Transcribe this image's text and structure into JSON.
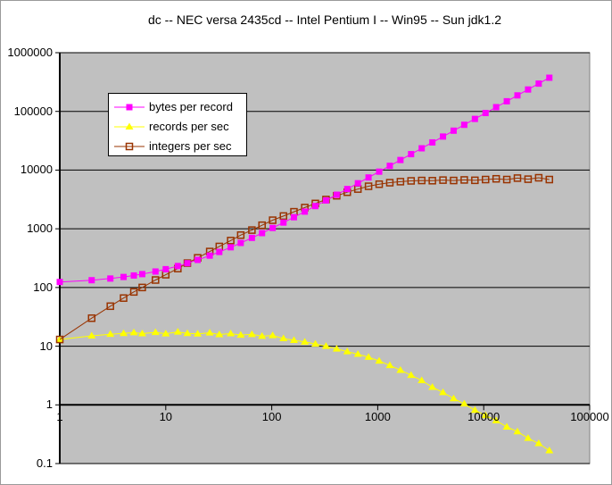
{
  "window": {
    "background": "#ffffff",
    "border_color": "#9a9a9a"
  },
  "chart_data": {
    "type": "line",
    "title": "dc -- NEC versa 2435cd -- Intel Pentium I -- Win95 -- Sun jdk1.2",
    "x_scale": "log",
    "y_scale": "log",
    "x_range": [
      1,
      100000
    ],
    "y_range": [
      0.1,
      1000000
    ],
    "x_tick_labels": [
      "1",
      "10",
      "100",
      "1000",
      "10000",
      "100000"
    ],
    "y_tick_labels": [
      "1000000",
      "100000",
      "10000",
      "1000",
      "100",
      "10",
      "1",
      "0.1"
    ],
    "grid": "horizontal-major",
    "plot_bg_color": "#c0c0c0",
    "gridline_color": "#000000",
    "axis_color": "#000000",
    "legend_position": "upper-left",
    "x": [
      1,
      2,
      3,
      4,
      5,
      6,
      8,
      10,
      13,
      16,
      20,
      26,
      32,
      41,
      51,
      65,
      81,
      102,
      129,
      162,
      205,
      258,
      325,
      410,
      516,
      650,
      819,
      1032,
      1300,
      1638,
      2064,
      2600,
      3277,
      4129,
      5202,
      6554,
      8258,
      10406,
      13107,
      16517,
      20810,
      26214,
      33032,
      41620
    ],
    "series": [
      {
        "name": "bytes per record",
        "color": "#ff00ff",
        "marker": "square",
        "values": [
          124,
          133,
          142,
          151,
          160,
          169,
          187,
          205,
          232,
          259,
          295,
          349,
          403,
          484,
          574,
          700,
          844,
          1033,
          1276,
          1573,
          1960,
          2437,
          3040,
          3805,
          4759,
          5965,
          7486,
          9403,
          11815,
          14857,
          18691,
          23515,
          29608,
          37276,
          46933,
          59101,
          74437,
          93769,
          118078,
          148768,
          187405,
          236041,
          297403,
          374695
        ]
      },
      {
        "name": "records per sec",
        "color": "#ffff00",
        "marker": "triangle",
        "values": [
          13,
          15,
          16,
          16.5,
          17,
          16.4,
          17.2,
          16.3,
          17.5,
          16.5,
          16.2,
          16.9,
          15.8,
          16.4,
          15.5,
          15.9,
          14.8,
          15.2,
          13.5,
          12.6,
          11.8,
          10.9,
          10.0,
          9.0,
          8.1,
          7.3,
          6.5,
          5.6,
          4.7,
          3.9,
          3.2,
          2.6,
          2.0,
          1.63,
          1.28,
          1.04,
          0.81,
          0.66,
          0.54,
          0.42,
          0.35,
          0.27,
          0.22,
          0.166
        ]
      },
      {
        "name": "integers per sec",
        "color": "#993300",
        "marker": "open-square",
        "values": [
          13,
          30,
          48,
          66,
          84,
          100,
          134,
          165,
          210,
          260,
          320,
          410,
          500,
          630,
          780,
          950,
          1150,
          1400,
          1650,
          1950,
          2300,
          2700,
          3150,
          3650,
          4200,
          4750,
          5300,
          5750,
          6100,
          6350,
          6550,
          6650,
          6600,
          6750,
          6650,
          6800,
          6700,
          6900,
          7100,
          6900,
          7300,
          7000,
          7400,
          6900
        ]
      }
    ]
  }
}
